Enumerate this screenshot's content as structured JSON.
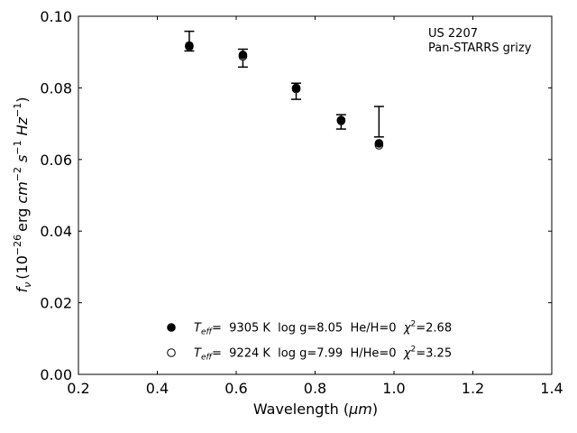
{
  "chart_data": {
    "type": "scatter",
    "annotation": [
      "US 2207",
      "Pan-STARRS grizy"
    ],
    "xlabel": "Wavelength (",
    "xlabel_sym": "μm",
    "xlabel_end": ")",
    "ylabel": {
      "sym": "f",
      "sub": "ν",
      "open": "(10",
      "exp1": "−26",
      "unit1": "erg",
      "cm": "cm",
      "exp2": "−2",
      "s": "s",
      "exp3": "−1",
      "hz": "Hz",
      "exp4": "−1",
      "close": ")"
    },
    "xlim": [
      0.2,
      1.4
    ],
    "ylim": [
      0.0,
      0.1
    ],
    "xticks": [
      "0.2",
      "0.4",
      "0.6",
      "0.8",
      "1.0",
      "1.2",
      "1.4"
    ],
    "yticks": [
      "0.00",
      "0.02",
      "0.04",
      "0.06",
      "0.08",
      "0.10"
    ],
    "observed": [
      {
        "x": 0.481,
        "low": 0.0903,
        "high": 0.0958
      },
      {
        "x": 0.617,
        "low": 0.0858,
        "high": 0.0908
      },
      {
        "x": 0.752,
        "low": 0.0768,
        "high": 0.0813
      },
      {
        "x": 0.866,
        "low": 0.0685,
        "high": 0.0725
      },
      {
        "x": 0.962,
        "low": 0.0663,
        "high": 0.0748
      }
    ],
    "series": [
      {
        "x": [
          0.481,
          0.617,
          0.752,
          0.866,
          0.962
        ],
        "y": [
          0.0918,
          0.0892,
          0.08,
          0.071,
          0.0645
        ],
        "marker": "filled"
      },
      {
        "x": [
          0.481,
          0.617,
          0.752,
          0.866,
          0.962
        ],
        "y": [
          0.0915,
          0.0888,
          0.0797,
          0.0708,
          0.064
        ],
        "marker": "open"
      }
    ],
    "legend": [
      {
        "marker": "filled",
        "teff_sym": "T",
        "teff_sub": "eff",
        "text": "=  9305 K  log g=8.05  He/H=0  ",
        "chi_sym": "χ",
        "chi_sup": "2",
        "chi_val": "=2.68"
      },
      {
        "marker": "open",
        "teff_sym": "T",
        "teff_sub": "eff",
        "text": "=  9224 K  log g=7.99  H/He=0  ",
        "chi_sym": "χ",
        "chi_sup": "2",
        "chi_val": "=3.25"
      }
    ],
    "legend_position": "lower-center",
    "grid": false
  }
}
